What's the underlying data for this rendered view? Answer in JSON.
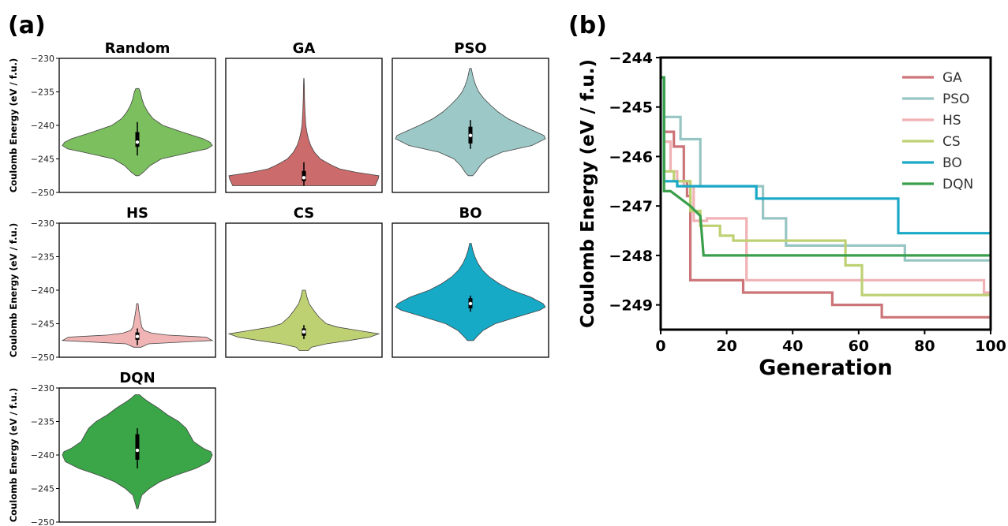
{
  "panels": {
    "a": "(a)",
    "b": "(b)"
  },
  "chart_data": [
    {
      "type": "violin",
      "panel": "(a)",
      "ylabel": "Coulomb Energy (eV / f.u.)",
      "ylim": [
        -250,
        -230
      ],
      "yticks": [
        -230,
        -235,
        -240,
        -245,
        -250
      ],
      "ytick_labels": [
        "−230",
        "−235",
        "−240",
        "−245",
        "−250"
      ],
      "violins": [
        {
          "name": "Random",
          "color": "#7bbf5e",
          "ymin": -247.5,
          "ymax": -234.5,
          "median": -242.5,
          "q1": -243.2,
          "q3": -241.0,
          "wlow": -244.5,
          "whigh": -239.5,
          "profile": [
            [
              -247.5,
              0.02
            ],
            [
              -247,
              0.08
            ],
            [
              -246,
              0.17
            ],
            [
              -245,
              0.32
            ],
            [
              -244,
              0.72
            ],
            [
              -243.5,
              0.93
            ],
            [
              -243,
              1.0
            ],
            [
              -242.5,
              0.97
            ],
            [
              -242,
              0.88
            ],
            [
              -241,
              0.6
            ],
            [
              -240,
              0.34
            ],
            [
              -239,
              0.21
            ],
            [
              -238,
              0.14
            ],
            [
              -237,
              0.09
            ],
            [
              -236,
              0.06
            ],
            [
              -235,
              0.04
            ],
            [
              -234.5,
              0.02
            ]
          ]
        },
        {
          "name": "GA",
          "color": "#cc6b6b",
          "ymin": -249,
          "ymax": -233,
          "median": -247.8,
          "q1": -248.3,
          "q3": -246.8,
          "wlow": -249,
          "whigh": -245.5,
          "profile": [
            [
              -249,
              0.95
            ],
            [
              -248.5,
              0.97
            ],
            [
              -248,
              0.99
            ],
            [
              -247.5,
              1.0
            ],
            [
              -247,
              0.7
            ],
            [
              -246.5,
              0.48
            ],
            [
              -246,
              0.38
            ],
            [
              -245.5,
              0.3
            ],
            [
              -245,
              0.22
            ],
            [
              -244,
              0.14
            ],
            [
              -243,
              0.09
            ],
            [
              -242,
              0.06
            ],
            [
              -241,
              0.04
            ],
            [
              -240,
              0.025
            ],
            [
              -238,
              0.015
            ],
            [
              -236,
              0.008
            ],
            [
              -234,
              0.005
            ],
            [
              -233,
              0.002
            ]
          ]
        },
        {
          "name": "PSO",
          "color": "#9cc9c7",
          "ymin": -247.5,
          "ymax": -231.5,
          "median": -241.5,
          "q1": -242.7,
          "q3": -240.2,
          "wlow": -243.5,
          "whigh": -239.2,
          "profile": [
            [
              -247.5,
              0.03
            ],
            [
              -247,
              0.07
            ],
            [
              -246,
              0.13
            ],
            [
              -245,
              0.22
            ],
            [
              -244,
              0.42
            ],
            [
              -243,
              0.82
            ],
            [
              -242,
              1.0
            ],
            [
              -241.5,
              0.98
            ],
            [
              -241,
              0.88
            ],
            [
              -240,
              0.68
            ],
            [
              -239,
              0.5
            ],
            [
              -238,
              0.37
            ],
            [
              -237,
              0.27
            ],
            [
              -236,
              0.18
            ],
            [
              -235,
              0.11
            ],
            [
              -234,
              0.07
            ],
            [
              -233,
              0.04
            ],
            [
              -232,
              0.02
            ],
            [
              -231.5,
              0.01
            ]
          ]
        },
        {
          "name": "HS",
          "color": "#f0b4b4",
          "ymin": -248.5,
          "ymax": -242,
          "median": -246.9,
          "q1": -247.4,
          "q3": -246.3,
          "wlow": -248.2,
          "whigh": -245.7,
          "profile": [
            [
              -248.5,
              0.05
            ],
            [
              -248,
              0.15
            ],
            [
              -247.5,
              1.0
            ],
            [
              -247,
              0.92
            ],
            [
              -246.7,
              0.4
            ],
            [
              -246.4,
              0.19
            ],
            [
              -246,
              0.09
            ],
            [
              -245.5,
              0.06
            ],
            [
              -245,
              0.05
            ],
            [
              -244,
              0.035
            ],
            [
              -243,
              0.02
            ],
            [
              -242,
              0.01
            ]
          ]
        },
        {
          "name": "CS",
          "color": "#bdd173",
          "ymin": -249,
          "ymax": -240,
          "median": -246.2,
          "q1": -246.8,
          "q3": -245.7,
          "wlow": -247.3,
          "whigh": -245.2,
          "profile": [
            [
              -249,
              0.06
            ],
            [
              -248.5,
              0.1
            ],
            [
              -248,
              0.3
            ],
            [
              -247.5,
              0.6
            ],
            [
              -247,
              0.88
            ],
            [
              -246.5,
              1.0
            ],
            [
              -246,
              0.72
            ],
            [
              -245.5,
              0.45
            ],
            [
              -245,
              0.3
            ],
            [
              -244,
              0.2
            ],
            [
              -243,
              0.13
            ],
            [
              -242,
              0.07
            ],
            [
              -241,
              0.04
            ],
            [
              -240,
              0.02
            ]
          ]
        },
        {
          "name": "BO",
          "color": "#16aac6",
          "ymin": -247.5,
          "ymax": -233,
          "median": -242.0,
          "q1": -242.7,
          "q3": -241.2,
          "wlow": -243.2,
          "whigh": -240.8,
          "profile": [
            [
              -247.5,
              0.04
            ],
            [
              -247,
              0.08
            ],
            [
              -246,
              0.17
            ],
            [
              -245,
              0.33
            ],
            [
              -244,
              0.62
            ],
            [
              -243,
              0.92
            ],
            [
              -242.5,
              1.0
            ],
            [
              -242,
              0.97
            ],
            [
              -241,
              0.8
            ],
            [
              -240,
              0.55
            ],
            [
              -239,
              0.38
            ],
            [
              -238,
              0.25
            ],
            [
              -237,
              0.16
            ],
            [
              -236,
              0.1
            ],
            [
              -235,
              0.06
            ],
            [
              -234,
              0.03
            ],
            [
              -233,
              0.01
            ]
          ]
        },
        {
          "name": "DQN",
          "color": "#3aa648",
          "ymin": -248,
          "ymax": -231,
          "median": -239.3,
          "q1": -240.7,
          "q3": -236.9,
          "wlow": -242.0,
          "whigh": -236.0,
          "profile": [
            [
              -248,
              0.01
            ],
            [
              -247.5,
              0.02
            ],
            [
              -246,
              0.06
            ],
            [
              -245,
              0.16
            ],
            [
              -244,
              0.3
            ],
            [
              -243,
              0.52
            ],
            [
              -242,
              0.78
            ],
            [
              -241,
              0.96
            ],
            [
              -240,
              1.0
            ],
            [
              -239.5,
              0.98
            ],
            [
              -239,
              0.88
            ],
            [
              -238,
              0.75
            ],
            [
              -237,
              0.7
            ],
            [
              -236,
              0.65
            ],
            [
              -235,
              0.55
            ],
            [
              -234,
              0.4
            ],
            [
              -233,
              0.28
            ],
            [
              -232,
              0.14
            ],
            [
              -231.5,
              0.08
            ],
            [
              -231,
              0.03
            ]
          ]
        }
      ]
    },
    {
      "type": "line",
      "panel": "(b)",
      "xlabel": "Generation",
      "ylabel": "Coulomb Energy (eV / f.u.)",
      "xlim": [
        0,
        100
      ],
      "ylim": [
        -249.5,
        -244
      ],
      "xticks": [
        0,
        20,
        40,
        60,
        80,
        100
      ],
      "xtick_labels": [
        "0",
        "20",
        "40",
        "60",
        "80",
        "100"
      ],
      "yticks": [
        -244,
        -245,
        -246,
        -247,
        -248,
        -249
      ],
      "ytick_labels": [
        "−244",
        "−245",
        "−246",
        "−247",
        "−248",
        "−249"
      ],
      "legend_position": "top-right",
      "series": [
        {
          "name": "GA",
          "color": "#cc7478",
          "points": [
            [
              0,
              -244.4
            ],
            [
              1,
              -244.4
            ],
            [
              1,
              -245.5
            ],
            [
              4,
              -245.5
            ],
            [
              4,
              -245.8
            ],
            [
              7,
              -245.8
            ],
            [
              7,
              -246.5
            ],
            [
              8,
              -246.5
            ],
            [
              8,
              -246.8
            ],
            [
              9,
              -246.8
            ],
            [
              9,
              -248.5
            ],
            [
              19,
              -248.5
            ],
            [
              19,
              -248.5
            ],
            [
              25,
              -248.5
            ],
            [
              25,
              -248.75
            ],
            [
              52,
              -248.75
            ],
            [
              52,
              -249.0
            ],
            [
              67,
              -249.0
            ],
            [
              67,
              -249.25
            ],
            [
              100,
              -249.25
            ]
          ]
        },
        {
          "name": "PSO",
          "color": "#96c5c3",
          "points": [
            [
              0,
              -244.4
            ],
            [
              1,
              -244.4
            ],
            [
              1,
              -245.2
            ],
            [
              6,
              -245.2
            ],
            [
              6,
              -245.65
            ],
            [
              12,
              -245.65
            ],
            [
              12,
              -246.6
            ],
            [
              31,
              -246.6
            ],
            [
              31,
              -247.25
            ],
            [
              38,
              -247.25
            ],
            [
              38,
              -247.8
            ],
            [
              74,
              -247.8
            ],
            [
              74,
              -248.1
            ],
            [
              100,
              -248.1
            ]
          ]
        },
        {
          "name": "HS",
          "color": "#f0b2b5",
          "points": [
            [
              0,
              -244.4
            ],
            [
              1,
              -244.4
            ],
            [
              1,
              -245.7
            ],
            [
              3,
              -245.7
            ],
            [
              3,
              -246.3
            ],
            [
              5,
              -246.3
            ],
            [
              5,
              -246.5
            ],
            [
              7,
              -246.5
            ],
            [
              7,
              -246.6
            ],
            [
              10,
              -246.6
            ],
            [
              10,
              -247.3
            ],
            [
              14,
              -247.3
            ],
            [
              14,
              -247.25
            ],
            [
              17,
              -247.25
            ],
            [
              17,
              -247.25
            ],
            [
              26,
              -247.25
            ],
            [
              26,
              -248.5
            ],
            [
              98,
              -248.5
            ],
            [
              98,
              -248.75
            ],
            [
              100,
              -248.75
            ]
          ]
        },
        {
          "name": "CS",
          "color": "#bdd173",
          "points": [
            [
              0,
              -244.4
            ],
            [
              1,
              -244.4
            ],
            [
              1,
              -246.3
            ],
            [
              4,
              -246.3
            ],
            [
              4,
              -246.5
            ],
            [
              9,
              -246.5
            ],
            [
              9,
              -247.1
            ],
            [
              12,
              -247.1
            ],
            [
              12,
              -247.4
            ],
            [
              18,
              -247.4
            ],
            [
              18,
              -247.6
            ],
            [
              22,
              -247.6
            ],
            [
              22,
              -247.7
            ],
            [
              56,
              -247.7
            ],
            [
              56,
              -248.2
            ],
            [
              61,
              -248.2
            ],
            [
              61,
              -248.8
            ],
            [
              100,
              -248.8
            ]
          ]
        },
        {
          "name": "BO",
          "color": "#1aa8c7",
          "points": [
            [
              0,
              -244.4
            ],
            [
              1,
              -244.4
            ],
            [
              1,
              -246.5
            ],
            [
              5,
              -246.5
            ],
            [
              5,
              -246.6
            ],
            [
              29,
              -246.6
            ],
            [
              29,
              -246.85
            ],
            [
              72,
              -246.85
            ],
            [
              72,
              -247.55
            ],
            [
              100,
              -247.55
            ]
          ]
        },
        {
          "name": "DQN",
          "color": "#3a9f4b",
          "points": [
            [
              0,
              -244.4
            ],
            [
              1,
              -244.4
            ],
            [
              1,
              -246.7
            ],
            [
              3,
              -246.7
            ],
            [
              9,
              -247.0
            ],
            [
              12,
              -247.2
            ],
            [
              13,
              -248.0
            ],
            [
              100,
              -248.0
            ]
          ]
        }
      ]
    }
  ]
}
